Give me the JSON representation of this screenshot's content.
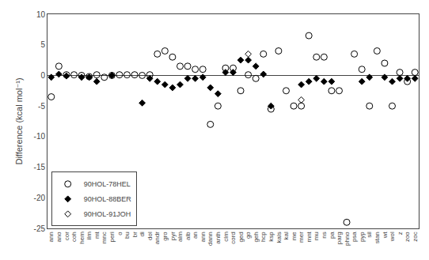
{
  "chart_data": {
    "type": "scatter",
    "categories": [
      "ann",
      "ano",
      "cor",
      "coh",
      "hem",
      "ilm",
      "mt",
      "mnc",
      "peri",
      "o",
      "bu",
      "br",
      "di",
      "dol",
      "andr",
      "gro",
      "pyr",
      "alm",
      "alb",
      "an",
      "ann",
      "dann",
      "anth",
      "clm",
      "cord",
      "ged",
      "go",
      "geh",
      "hcp",
      "ksp",
      "kals",
      "kal",
      "me",
      "mer",
      "mnt",
      "mu",
      "ns",
      "pa",
      "parg",
      "phno",
      "psa",
      "pyp",
      "sil",
      "stan",
      "wt",
      "wol",
      "z",
      "zoo",
      "zoc"
    ],
    "series": [
      {
        "name": "90HOL-78HEL",
        "color": "black",
        "marker": "circle-open",
        "values": [
          -3.5,
          1.5,
          0.1,
          0.1,
          0.0,
          -0.2,
          0.1,
          -0.3,
          0.0,
          0.1,
          0.1,
          0.1,
          0.0,
          0.1,
          3.5,
          4.0,
          3.0,
          1.5,
          1.5,
          1.0,
          1.0,
          -8.0,
          -5.0,
          1.2,
          1.2,
          -2.5,
          0.1,
          -0.5,
          3.5,
          -5.5,
          4.0,
          -2.5,
          -5.0,
          -5.0,
          6.5,
          3.0,
          3.0,
          -2.5,
          -2.5,
          -24.0,
          3.5,
          1.0,
          -5.0,
          4.0,
          2.0,
          -5.0,
          0.5,
          -1.0,
          0.5
        ]
      },
      {
        "name": "90HOL-88BER",
        "color": "black",
        "marker": "diamond",
        "values": [
          -0.3,
          0.2,
          -0.1,
          null,
          -0.3,
          -0.3,
          -1.0,
          null,
          0.0,
          null,
          null,
          null,
          -4.5,
          -0.5,
          -1.0,
          -1.5,
          -2.0,
          -1.5,
          -0.5,
          -0.5,
          -0.3,
          -2.0,
          -3.0,
          0.5,
          0.5,
          2.5,
          2.5,
          1.5,
          0.2,
          -5.0,
          null,
          null,
          null,
          -1.5,
          -1.0,
          -0.5,
          -1.0,
          -1.0,
          null,
          null,
          null,
          -1.0,
          -0.3,
          null,
          -0.3,
          -1.0,
          -0.5,
          -0.5,
          -0.5
        ]
      },
      {
        "name": "90HOL-91JOH",
        "color": "black",
        "marker": "diamond-open",
        "values": [
          null,
          null,
          null,
          null,
          null,
          null,
          null,
          null,
          null,
          null,
          null,
          null,
          null,
          null,
          null,
          null,
          null,
          null,
          null,
          null,
          null,
          null,
          null,
          null,
          null,
          null,
          3.5,
          null,
          null,
          null,
          null,
          null,
          null,
          -4.0,
          null,
          null,
          null,
          null,
          null,
          null,
          null,
          null,
          null,
          null,
          null,
          null,
          null,
          null,
          null
        ]
      }
    ],
    "ylabel": "Difference (kcal mol⁻¹)",
    "ylim": [
      -25,
      10
    ],
    "yticks": [
      10,
      5,
      0,
      -5,
      -10,
      -15,
      -20,
      -25
    ],
    "grid": false,
    "legend": "lower left"
  }
}
